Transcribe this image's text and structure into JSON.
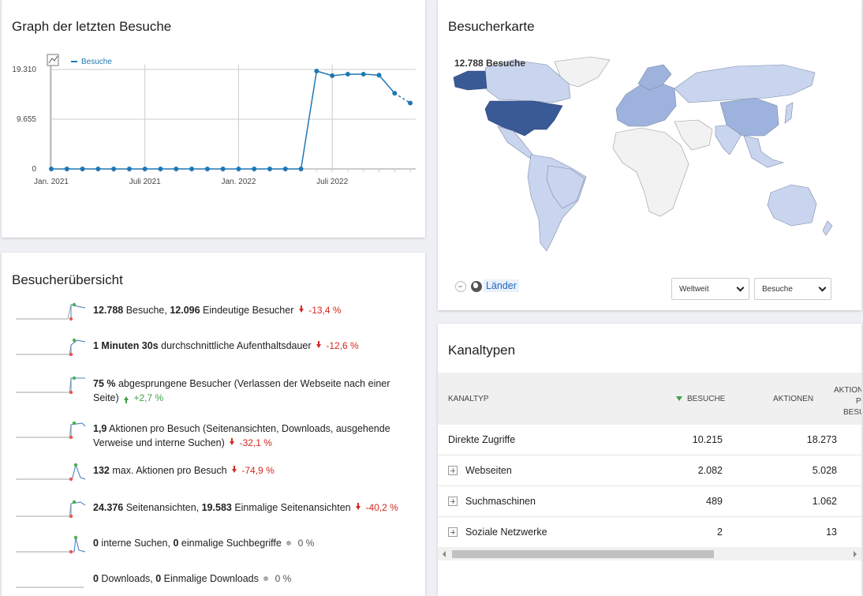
{
  "graph": {
    "title": "Graph der letzten Besuche",
    "legend": "Besuche",
    "y_ticks": [
      "19.310",
      "9.655",
      "0"
    ],
    "x_ticks": [
      "Jan. 2021",
      "Juli 2021",
      "Jan. 2022",
      "Juli 2022"
    ],
    "line_color": "#1f77b4"
  },
  "chart_data": {
    "type": "line",
    "x": [
      "2021-01",
      "2021-02",
      "2021-03",
      "2021-04",
      "2021-05",
      "2021-06",
      "2021-07",
      "2021-08",
      "2021-09",
      "2021-10",
      "2021-11",
      "2021-12",
      "2022-01",
      "2022-02",
      "2022-03",
      "2022-04",
      "2022-05",
      "2022-06",
      "2022-07",
      "2022-08",
      "2022-09",
      "2022-10",
      "2022-11",
      "2022-12"
    ],
    "series": [
      {
        "name": "Besuche",
        "values": [
          0,
          0,
          0,
          0,
          0,
          0,
          0,
          0,
          0,
          0,
          0,
          0,
          0,
          0,
          0,
          0,
          0,
          19000,
          18100,
          18400,
          18400,
          18200,
          14700,
          12788
        ]
      }
    ],
    "ylim": [
      0,
      19310
    ],
    "y_ticks": [
      0,
      9655,
      19310
    ],
    "x_tick_labels": [
      "Jan. 2021",
      "Juli 2021",
      "Jan. 2022",
      "Juli 2022"
    ],
    "grid": true,
    "legend_position": "top-left",
    "last_segment_dashed": true
  },
  "overview": {
    "title": "Besucherübersicht",
    "metrics": [
      {
        "parts": [
          {
            "b": "12.788"
          },
          {
            "t": " Besuche, "
          },
          {
            "b": "12.096"
          },
          {
            "t": " Eindeutige Besucher"
          }
        ],
        "trend": "down",
        "change": "-13,4 %"
      },
      {
        "parts": [
          {
            "b": "1 Minuten 30s"
          },
          {
            "t": " durchschnittliche Aufenthaltsdauer"
          }
        ],
        "trend": "down",
        "change": "-12,6 %"
      },
      {
        "parts": [
          {
            "b": "75 %"
          },
          {
            "t": " abgesprungene Besucher (Verlassen der Webseite nach einer Seite)"
          }
        ],
        "trend": "up",
        "change": "+2,7 %"
      },
      {
        "parts": [
          {
            "b": "1,9"
          },
          {
            "t": " Aktionen pro Besuch (Seitenansichten, Downloads, ausgehende Verweise und interne Suchen)"
          }
        ],
        "trend": "down",
        "change": "-32,1 %"
      },
      {
        "parts": [
          {
            "b": "132"
          },
          {
            "t": " max. Aktionen pro Besuch"
          }
        ],
        "trend": "down",
        "change": "-74,9 %"
      },
      {
        "parts": [
          {
            "b": "24.376"
          },
          {
            "t": " Seitenansichten, "
          },
          {
            "b": "19.583"
          },
          {
            "t": " Einmalige Seitenansichten"
          }
        ],
        "trend": "down",
        "change": "-40,2 %"
      },
      {
        "parts": [
          {
            "b": "0"
          },
          {
            "t": " interne Suchen, "
          },
          {
            "b": "0"
          },
          {
            "t": " einmalige Suchbegriffe"
          }
        ],
        "trend": "neutral",
        "change": "0 %"
      },
      {
        "parts": [
          {
            "b": "0"
          },
          {
            "t": " Downloads, "
          },
          {
            "b": "0"
          },
          {
            "t": " Einmalige Downloads"
          }
        ],
        "trend": "neutral",
        "change": "0 %"
      }
    ]
  },
  "map": {
    "title": "Besucherkarte",
    "hover_label": "12.788 Besuche",
    "link_label": "Länder",
    "region_select": "Weltweit",
    "metric_select": "Besuche",
    "colors": {
      "high": "#3a5a96",
      "mid": "#9db2dc",
      "low": "#c9d5ee",
      "none": "#f2f2f2"
    }
  },
  "channels": {
    "title": "Kanaltypen",
    "headers": {
      "type": "KANALTYP",
      "visits": "BESUCHE",
      "actions": "AKTIONEN",
      "apb_line1": "AKTION",
      "apb_line2": "P",
      "apb_line3": "BESU"
    },
    "rows": [
      {
        "label": "Direkte Zugriffe",
        "visits": "10.215",
        "actions": "18.273",
        "expandable": false
      },
      {
        "label": "Webseiten",
        "visits": "2.082",
        "actions": "5.028",
        "expandable": true
      },
      {
        "label": "Suchmaschinen",
        "visits": "489",
        "actions": "1.062",
        "expandable": true
      },
      {
        "label": "Soziale Netzwerke",
        "visits": "2",
        "actions": "13",
        "expandable": true
      }
    ]
  }
}
